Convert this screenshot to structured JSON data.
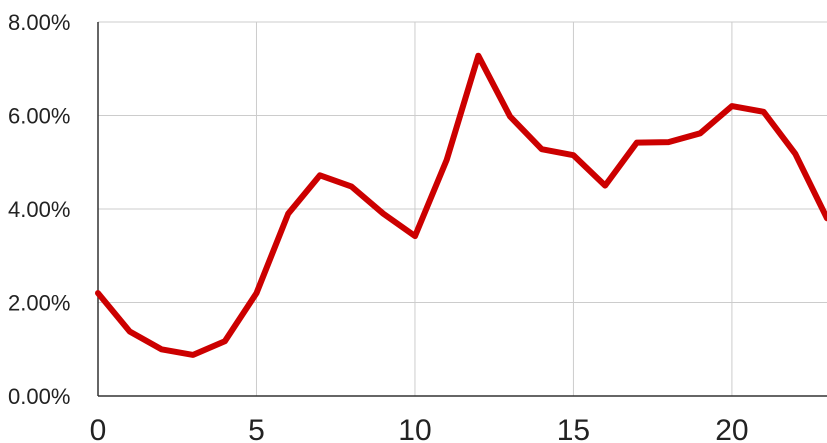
{
  "chart_data": {
    "type": "line",
    "title": "",
    "xlabel": "",
    "ylabel": "",
    "xlim": [
      0,
      23
    ],
    "ylim": [
      0,
      8
    ],
    "x_ticks": [
      0,
      5,
      10,
      15,
      20
    ],
    "x_tick_labels": [
      "0",
      "5",
      "10",
      "15",
      "20"
    ],
    "y_ticks": [
      0,
      2,
      4,
      6,
      8
    ],
    "y_tick_labels": [
      "0.00%",
      "2.00%",
      "4.00%",
      "6.00%",
      "8.00%"
    ],
    "grid": true,
    "legend": "none",
    "series": [
      {
        "color": "#cc0000",
        "x": [
          0,
          1,
          2,
          3,
          4,
          5,
          6,
          7,
          8,
          9,
          10,
          11,
          12,
          13,
          14,
          15,
          16,
          17,
          18,
          19,
          20,
          21,
          22,
          23
        ],
        "y": [
          2.2,
          1.38,
          1.0,
          0.88,
          1.17,
          2.2,
          3.9,
          4.72,
          4.48,
          3.9,
          3.42,
          5.05,
          7.28,
          5.98,
          5.28,
          5.15,
          4.5,
          5.42,
          5.43,
          5.62,
          6.2,
          6.08,
          5.18,
          3.8
        ]
      }
    ]
  }
}
